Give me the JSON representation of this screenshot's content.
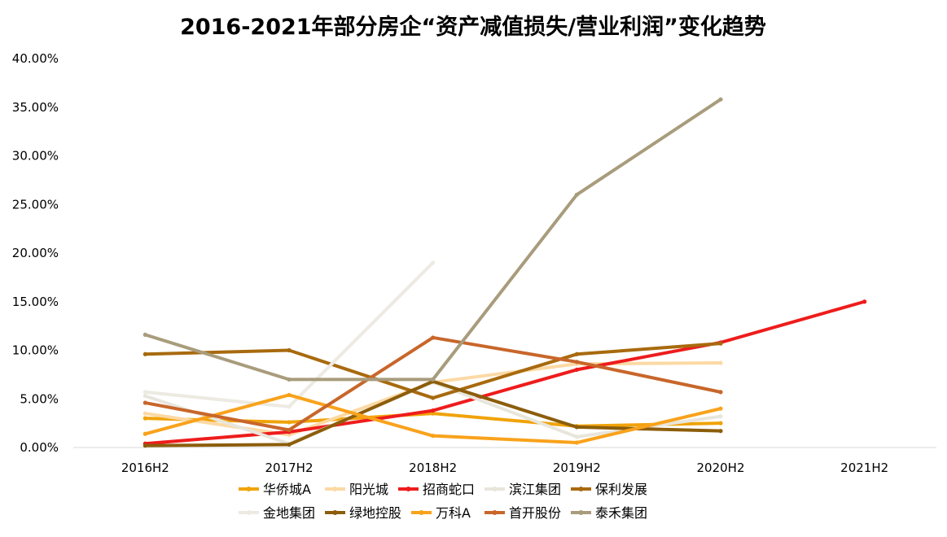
{
  "chart_data": {
    "type": "line",
    "title": "2016-2021年部分房企“资产减值损失/营业利润”变化趋势",
    "xlabel": "",
    "ylabel": "",
    "categories": [
      "2016H2",
      "2017H2",
      "2018H2",
      "2019H2",
      "2020H2",
      "2021H2"
    ],
    "y_ticks": [
      "0.00%",
      "5.00%",
      "10.00%",
      "15.00%",
      "20.00%",
      "25.00%",
      "30.00%",
      "35.00%",
      "40.00%"
    ],
    "ylim": [
      0,
      40
    ],
    "grid": false,
    "legend_position": "bottom",
    "series": [
      {
        "name": "华侨城A",
        "color": "#F0A30A",
        "values": [
          3.0,
          2.6,
          3.5,
          2.2,
          2.5,
          null
        ]
      },
      {
        "name": "阳光城",
        "color": "#FCD9A4",
        "values": [
          3.5,
          1.3,
          6.7,
          8.6,
          8.7,
          null
        ]
      },
      {
        "name": "招商蛇口",
        "color": "#EE1C1C",
        "values": [
          0.4,
          1.6,
          3.8,
          8.0,
          10.8,
          15.0
        ]
      },
      {
        "name": "滨江集团",
        "color": "#E8E6DC",
        "values": [
          5.3,
          0.4,
          6.7,
          1.1,
          3.2,
          null
        ]
      },
      {
        "name": "保利发展",
        "color": "#A86A0E",
        "values": [
          9.6,
          10.0,
          5.1,
          9.6,
          10.7,
          null
        ]
      },
      {
        "name": "金地集团",
        "color": "#EDEAE2",
        "values": [
          5.7,
          4.2,
          19.0,
          null,
          null,
          null
        ]
      },
      {
        "name": "绿地控股",
        "color": "#8C5D0A",
        "values": [
          0.2,
          0.3,
          6.8,
          2.1,
          1.7,
          null
        ]
      },
      {
        "name": "万科A",
        "color": "#F9A21B",
        "values": [
          1.4,
          5.4,
          1.2,
          0.5,
          4.0,
          null
        ]
      },
      {
        "name": "首开股份",
        "color": "#C8662A",
        "values": [
          4.6,
          1.8,
          11.3,
          8.8,
          5.7,
          null
        ]
      },
      {
        "name": "泰禾集团",
        "color": "#A89C7C",
        "values": [
          11.6,
          7.0,
          7.0,
          26.0,
          35.8,
          null
        ]
      }
    ]
  }
}
